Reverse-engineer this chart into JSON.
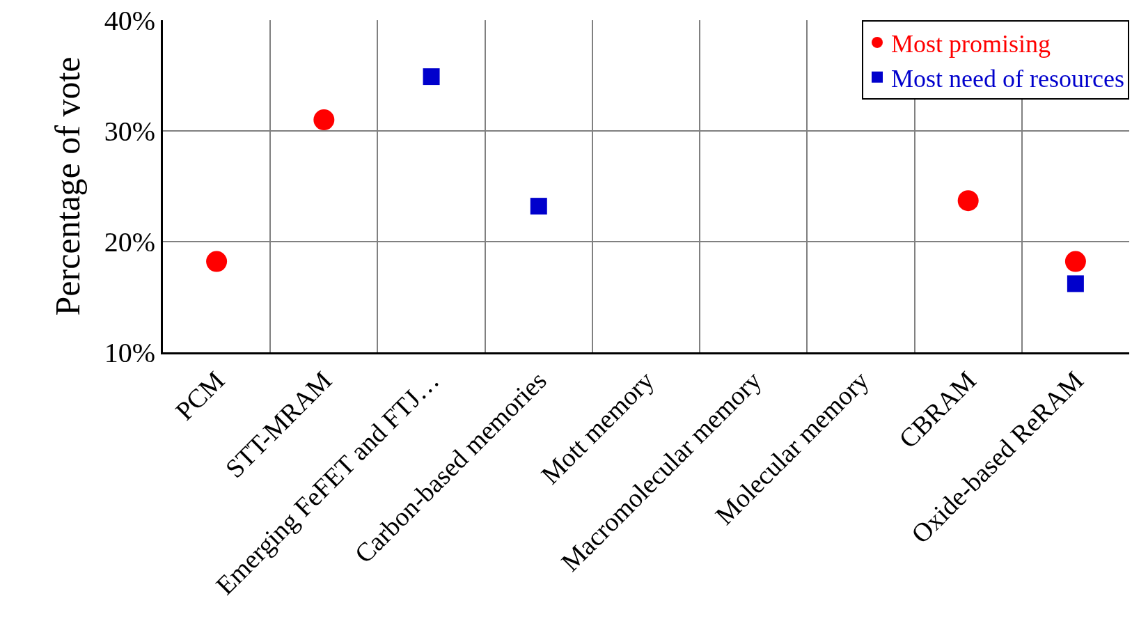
{
  "chart_data": {
    "type": "scatter",
    "ylabel": "Percentage of vote",
    "categories": [
      "PCM",
      "STT-MRAM",
      "Emerging FeFET and FTJ…",
      "Carbon-based memories",
      "Mott memory",
      "Macromolecular memory",
      "Molecular memory",
      "CBRAM",
      "Oxide-based ReRAM"
    ],
    "series": [
      {
        "name": "Most promising",
        "color": "#ff0000",
        "marker": "circle",
        "values": [
          18.2,
          31.0,
          null,
          null,
          null,
          null,
          null,
          23.7,
          18.2
        ]
      },
      {
        "name": "Most need of resources",
        "color": "#0000cc",
        "marker": "square",
        "values": [
          null,
          null,
          34.9,
          23.2,
          null,
          null,
          null,
          null,
          16.2
        ]
      }
    ],
    "ylim": [
      10,
      40
    ],
    "yticks": [
      {
        "value": 10,
        "label": "10%"
      },
      {
        "value": 20,
        "label": "20%"
      },
      {
        "value": 30,
        "label": "30%"
      },
      {
        "value": 40,
        "label": "40%"
      }
    ],
    "grid": true,
    "legend": "top right"
  }
}
